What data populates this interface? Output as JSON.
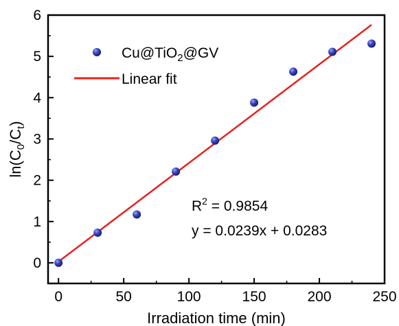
{
  "chart_data": {
    "type": "scatter",
    "xlabel": "Irradiation time (min)",
    "ylabel_parts": {
      "base": "ln(C",
      "sub1": "0",
      "mid": "/C",
      "sub2": "t",
      "end": ")"
    },
    "xlim": [
      -8,
      250
    ],
    "ylim": [
      -0.5,
      6
    ],
    "x_ticks": [
      0,
      50,
      100,
      150,
      200,
      250
    ],
    "y_ticks": [
      0,
      1,
      2,
      3,
      4,
      5,
      6
    ],
    "series": [
      {
        "name_parts": {
          "base": "Cu@TiO",
          "sub": "2",
          "end": "@GV"
        },
        "marker_color": "#2f3a9e",
        "points": [
          {
            "x": 0,
            "y": 0
          },
          {
            "x": 30,
            "y": 0.73
          },
          {
            "x": 60,
            "y": 1.17
          },
          {
            "x": 90,
            "y": 2.21
          },
          {
            "x": 120,
            "y": 2.96
          },
          {
            "x": 150,
            "y": 3.88
          },
          {
            "x": 180,
            "y": 4.63
          },
          {
            "x": 210,
            "y": 5.11
          },
          {
            "x": 240,
            "y": 5.31
          }
        ]
      }
    ],
    "fit": {
      "name": "Linear fit",
      "color": "#e8201e",
      "slope": 0.0239,
      "intercept": 0.0283,
      "x_range": [
        0,
        240
      ]
    },
    "annotations": {
      "r2_base": "R",
      "r2_sup": "2",
      "r2_value": " = 0.9854",
      "equation": "y = 0.0239x + 0.0283"
    },
    "legend_position": "top-left"
  }
}
